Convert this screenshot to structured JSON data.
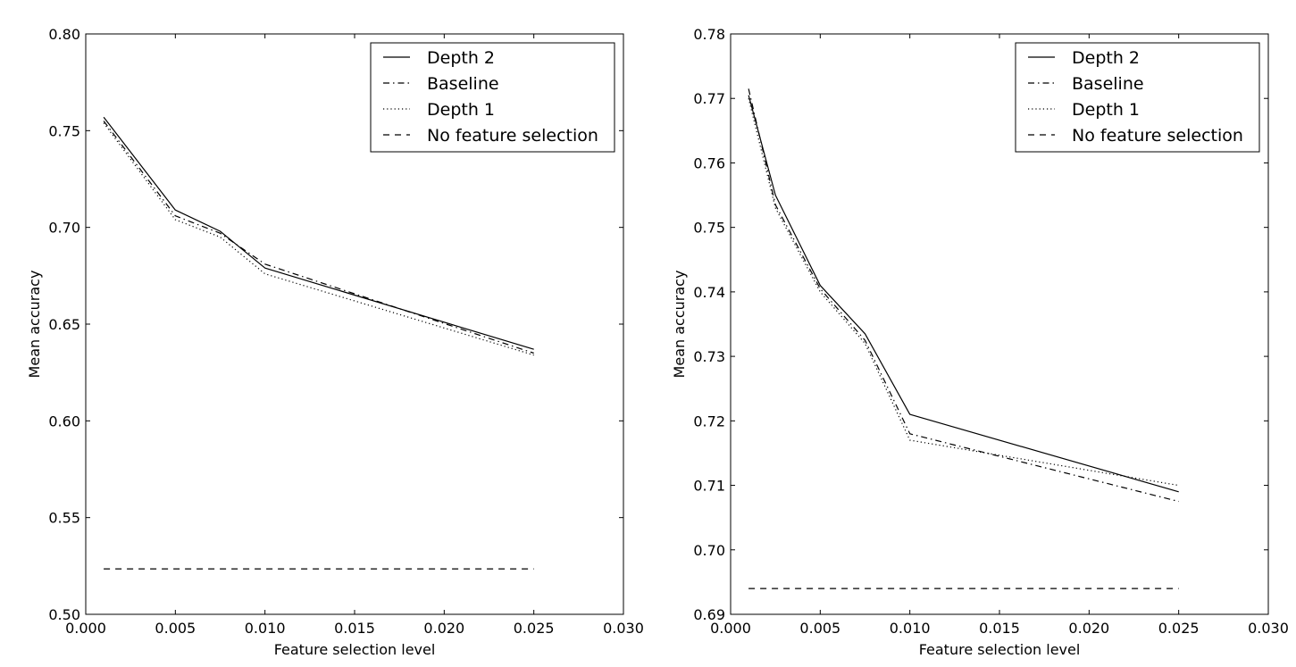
{
  "chart_data": [
    {
      "type": "line",
      "xlabel": "Feature selection level",
      "ylabel": "Mean accuracy",
      "xlim": [
        0.0,
        0.03
      ],
      "ylim": [
        0.5,
        0.8
      ],
      "xticks": [
        0.0,
        0.005,
        0.01,
        0.015,
        0.02,
        0.025,
        0.03
      ],
      "xtick_labels": [
        "0.000",
        "0.005",
        "0.010",
        "0.015",
        "0.020",
        "0.025",
        "0.030"
      ],
      "yticks": [
        0.5,
        0.55,
        0.6,
        0.65,
        0.7,
        0.75,
        0.8
      ],
      "ytick_labels": [
        "0.50",
        "0.55",
        "0.60",
        "0.65",
        "0.70",
        "0.75",
        "0.80"
      ],
      "grid": false,
      "legend_position": "top-right",
      "series": [
        {
          "name": "Depth 2",
          "style": "solid",
          "x": [
            0.001,
            0.005,
            0.0075,
            0.01,
            0.025
          ],
          "y": [
            0.757,
            0.709,
            0.698,
            0.679,
            0.637
          ]
        },
        {
          "name": "Baseline",
          "style": "dashdot",
          "x": [
            0.001,
            0.005,
            0.0075,
            0.01,
            0.025
          ],
          "y": [
            0.755,
            0.706,
            0.697,
            0.681,
            0.635
          ]
        },
        {
          "name": "Depth 1",
          "style": "dotted",
          "x": [
            0.001,
            0.005,
            0.0075,
            0.01,
            0.025
          ],
          "y": [
            0.754,
            0.704,
            0.695,
            0.676,
            0.634
          ]
        },
        {
          "name": "No feature selection",
          "style": "dashed",
          "x": [
            0.001,
            0.025
          ],
          "y": [
            0.5235,
            0.5235
          ]
        }
      ]
    },
    {
      "type": "line",
      "xlabel": "Feature selection level",
      "ylabel": "Mean accuracy",
      "xlim": [
        0.0,
        0.03
      ],
      "ylim": [
        0.69,
        0.78
      ],
      "xticks": [
        0.0,
        0.005,
        0.01,
        0.015,
        0.02,
        0.025,
        0.03
      ],
      "xtick_labels": [
        "0.000",
        "0.005",
        "0.010",
        "0.015",
        "0.020",
        "0.025",
        "0.030"
      ],
      "yticks": [
        0.69,
        0.7,
        0.71,
        0.72,
        0.73,
        0.74,
        0.75,
        0.76,
        0.77,
        0.78
      ],
      "ytick_labels": [
        "0.69",
        "0.70",
        "0.71",
        "0.72",
        "0.73",
        "0.74",
        "0.75",
        "0.76",
        "0.77",
        "0.78"
      ],
      "grid": false,
      "legend_position": "top-right",
      "series": [
        {
          "name": "Depth 2",
          "style": "solid",
          "x": [
            0.001,
            0.0025,
            0.005,
            0.0075,
            0.01,
            0.025
          ],
          "y": [
            0.7705,
            0.755,
            0.741,
            0.7335,
            0.721,
            0.709
          ]
        },
        {
          "name": "Baseline",
          "style": "dashdot",
          "x": [
            0.001,
            0.0025,
            0.005,
            0.0075,
            0.01,
            0.025
          ],
          "y": [
            0.7715,
            0.7535,
            0.7405,
            0.7325,
            0.718,
            0.7075
          ]
        },
        {
          "name": "Depth 1",
          "style": "dotted",
          "x": [
            0.001,
            0.0025,
            0.005,
            0.0075,
            0.01,
            0.025
          ],
          "y": [
            0.77,
            0.753,
            0.74,
            0.732,
            0.717,
            0.71
          ]
        },
        {
          "name": "No feature selection",
          "style": "dashed",
          "x": [
            0.001,
            0.025
          ],
          "y": [
            0.694,
            0.694
          ]
        }
      ]
    }
  ]
}
